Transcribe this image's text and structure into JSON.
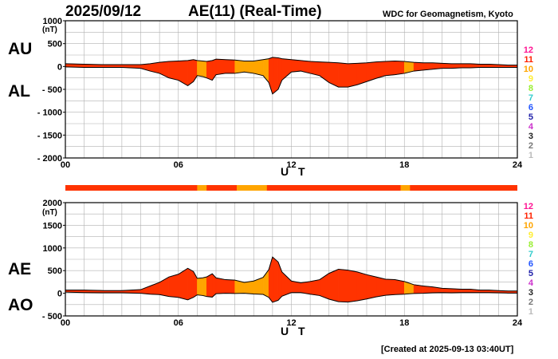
{
  "header": {
    "date": "2025/09/12",
    "title": "AE(11) (Real-Time)",
    "organization": "WDC for Geomagnetism, Kyoto"
  },
  "footer": {
    "created": "[Created at 2025-09-13 03:40UT]"
  },
  "colors": {
    "background": "#ffffff",
    "grid": "#b0b0b0",
    "axis": "#000000",
    "fill_many_stations": "#ff3300",
    "fill_ten_stations": "#ffa500"
  },
  "station_legend": [
    {
      "label": "12",
      "color": "#ff1493"
    },
    {
      "label": "11",
      "color": "#ff2200"
    },
    {
      "label": "10",
      "color": "#ffa500"
    },
    {
      "label": "9",
      "color": "#ffee33"
    },
    {
      "label": "8",
      "color": "#99ee33"
    },
    {
      "label": "7",
      "color": "#33cccc"
    },
    {
      "label": "6",
      "color": "#2255ff"
    },
    {
      "label": "5",
      "color": "#2222aa"
    },
    {
      "label": "4",
      "color": "#cc33cc"
    },
    {
      "label": "3",
      "color": "#222222"
    },
    {
      "label": "2",
      "color": "#777777"
    },
    {
      "label": "1",
      "color": "#bbbbbb"
    }
  ],
  "station_count_strip": {
    "ten_station_intervals": [
      [
        7.0,
        7.5
      ],
      [
        9.1,
        10.7
      ],
      [
        17.8,
        18.3
      ]
    ]
  },
  "chart_data": [
    {
      "type": "area",
      "id": "au-al",
      "upper_series": {
        "name": "AU"
      },
      "lower_series": {
        "name": "AL"
      },
      "xlabel": "U T",
      "ylabel": "(nT)",
      "xlim": [
        0,
        24
      ],
      "ylim": [
        -2000,
        1000
      ],
      "x_ticks": [
        "00",
        "06",
        "12",
        "18",
        "24"
      ],
      "x_tick_values": [
        0,
        6,
        12,
        18,
        24
      ],
      "y_ticks": [
        "1000",
        "500",
        "0",
        "- 500",
        "- 1000",
        "- 1500",
        "- 2000"
      ],
      "y_tick_values": [
        1000,
        500,
        0,
        -500,
        -1000,
        -1500,
        -2000
      ],
      "grid": true,
      "x": [
        0,
        1,
        2,
        3,
        4,
        4.5,
        5,
        5.5,
        6,
        6.5,
        6.8,
        7,
        7.3,
        7.5,
        7.8,
        8,
        8.5,
        9,
        9.5,
        10,
        10.5,
        10.8,
        11,
        11.3,
        11.5,
        12,
        12.5,
        13,
        13.5,
        14,
        14.5,
        15,
        15.5,
        16,
        16.5,
        17,
        17.5,
        18,
        18.5,
        19,
        19.5,
        20,
        20.5,
        21,
        21.5,
        22,
        22.5,
        23,
        23.5,
        24
      ],
      "au": [
        60,
        50,
        40,
        40,
        40,
        60,
        90,
        110,
        120,
        130,
        150,
        130,
        120,
        110,
        130,
        160,
        150,
        140,
        120,
        120,
        150,
        170,
        200,
        190,
        170,
        150,
        130,
        110,
        100,
        90,
        80,
        60,
        70,
        80,
        100,
        110,
        120,
        110,
        90,
        80,
        80,
        70,
        60,
        60,
        60,
        50,
        50,
        40,
        30,
        30
      ],
      "al": [
        -10,
        -20,
        -20,
        -20,
        -40,
        -100,
        -150,
        -250,
        -300,
        -420,
        -330,
        -200,
        -220,
        -250,
        -300,
        -180,
        -150,
        -150,
        -120,
        -150,
        -200,
        -350,
        -600,
        -500,
        -300,
        -120,
        -100,
        -150,
        -200,
        -350,
        -450,
        -450,
        -400,
        -330,
        -260,
        -200,
        -180,
        -150,
        -100,
        -80,
        -60,
        -40,
        -40,
        -30,
        -30,
        -20,
        -20,
        -20,
        -20,
        -20
      ]
    },
    {
      "type": "area",
      "id": "ae-ao",
      "upper_series": {
        "name": "AE"
      },
      "lower_series": {
        "name": "AO"
      },
      "xlabel": "U T",
      "ylabel": "(nT)",
      "xlim": [
        0,
        24
      ],
      "ylim": [
        -500,
        2000
      ],
      "x_ticks": [
        "00",
        "06",
        "12",
        "18",
        "24"
      ],
      "x_tick_values": [
        0,
        6,
        12,
        18,
        24
      ],
      "y_ticks": [
        "2000",
        "1500",
        "1000",
        "500",
        "0",
        "- 500"
      ],
      "y_tick_values": [
        2000,
        1500,
        1000,
        500,
        0,
        -500
      ],
      "grid": true,
      "x": [
        0,
        1,
        2,
        3,
        4,
        4.5,
        5,
        5.5,
        6,
        6.5,
        6.8,
        7,
        7.3,
        7.5,
        7.8,
        8,
        8.5,
        9,
        9.5,
        10,
        10.5,
        10.8,
        11,
        11.3,
        11.5,
        12,
        12.5,
        13,
        13.5,
        14,
        14.5,
        15,
        15.5,
        16,
        16.5,
        17,
        17.5,
        18,
        18.5,
        19,
        19.5,
        20,
        20.5,
        21,
        21.5,
        22,
        22.5,
        23,
        23.5,
        24
      ],
      "ae": [
        70,
        70,
        60,
        60,
        80,
        160,
        240,
        360,
        420,
        550,
        480,
        330,
        340,
        360,
        430,
        340,
        300,
        290,
        240,
        270,
        350,
        520,
        800,
        690,
        470,
        270,
        230,
        260,
        300,
        440,
        530,
        510,
        470,
        410,
        360,
        310,
        300,
        260,
        190,
        160,
        140,
        110,
        100,
        90,
        90,
        70,
        70,
        60,
        50,
        50
      ],
      "ao": [
        25,
        15,
        10,
        10,
        0,
        -20,
        -30,
        -70,
        -90,
        -145,
        -90,
        -35,
        -50,
        -70,
        -85,
        -10,
        0,
        -5,
        0,
        -15,
        -25,
        -90,
        -200,
        -155,
        -65,
        15,
        15,
        -20,
        -50,
        -130,
        -185,
        -195,
        -165,
        -125,
        -80,
        -45,
        -30,
        -20,
        -5,
        0,
        10,
        15,
        10,
        15,
        15,
        15,
        15,
        10,
        5,
        5
      ]
    }
  ]
}
